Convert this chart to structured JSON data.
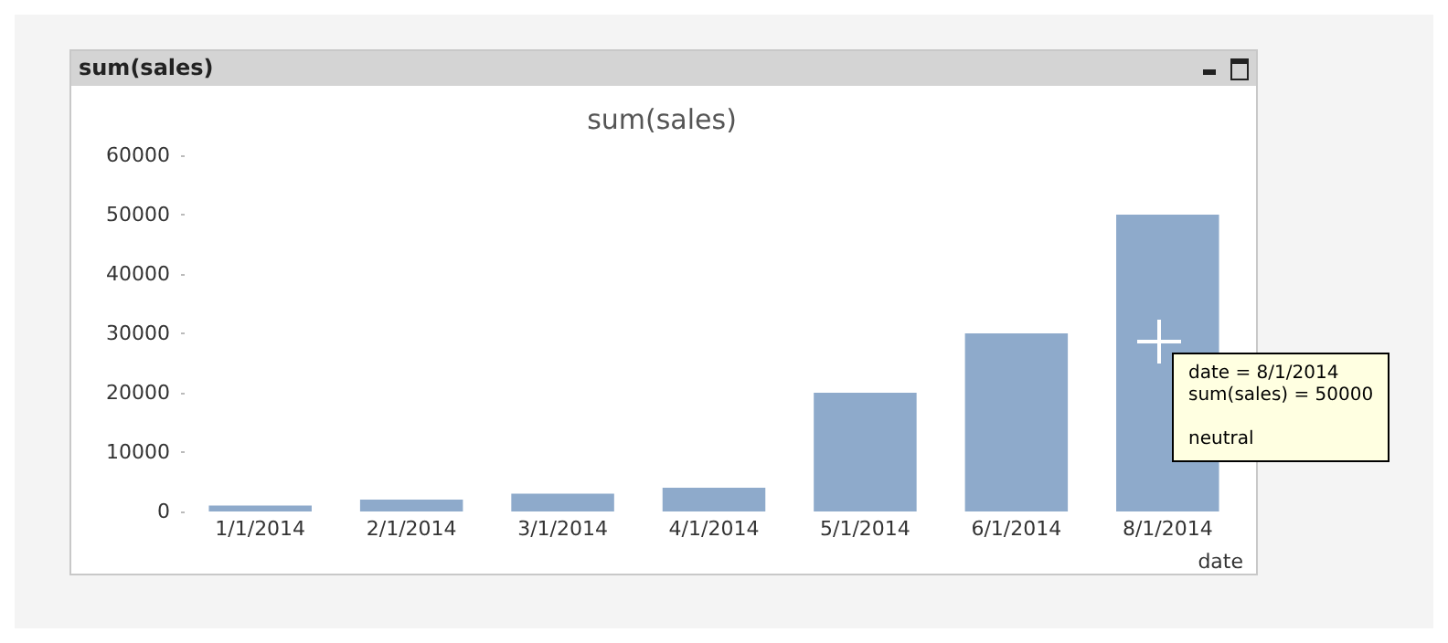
{
  "chart_data": {
    "type": "bar",
    "title": "sum(sales)",
    "xlabel": "date",
    "categories": [
      "1/1/2014",
      "2/1/2014",
      "3/1/2014",
      "4/1/2014",
      "5/1/2014",
      "6/1/2014",
      "8/1/2014"
    ],
    "values": [
      1000,
      2000,
      3000,
      4000,
      20000,
      30000,
      50000
    ],
    "color": "#8eaacb",
    "ylim": [
      0,
      60000
    ],
    "yticks": [
      0,
      10000,
      20000,
      30000,
      40000,
      50000,
      60000
    ],
    "grid": false,
    "annotations": [
      "sum(sales)",
      "date = 8/1/2014\nsum(sales) = 50000\n\nneutral"
    ]
  }
}
